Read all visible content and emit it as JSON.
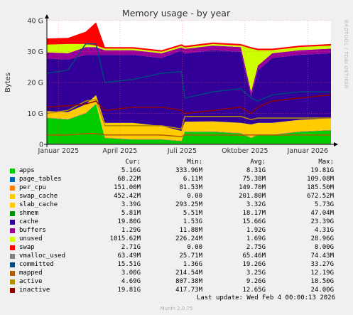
{
  "chart_data": {
    "type": "area",
    "title": "Memory usage - by year",
    "ylabel": "Bytes",
    "side_label": "RRDTOOL / TOBI OETIKER",
    "ylim": [
      0,
      40
    ],
    "yticks": [
      {
        "v": 0,
        "label": "0"
      },
      {
        "v": 10,
        "label": "10 G"
      },
      {
        "v": 20,
        "label": "20 G"
      },
      {
        "v": 30,
        "label": "30 G"
      },
      {
        "v": 40,
        "label": "40 G"
      }
    ],
    "xlim": [
      "2024-12-15",
      "2026-02-04"
    ],
    "xticks": [
      {
        "date": "2025-01-01",
        "label": "Januar 2025"
      },
      {
        "date": "2025-04-01",
        "label": "April 2025"
      },
      {
        "date": "2025-07-01",
        "label": "Juli 2025"
      },
      {
        "date": "2025-10-01",
        "label": "Oktober 2025"
      },
      {
        "date": "2026-01-01",
        "label": "Januar 2026"
      }
    ],
    "x": [
      "2024-12-15",
      "2025-01-15",
      "2025-02-10",
      "2025-02-25",
      "2025-03-10",
      "2025-04-20",
      "2025-06-01",
      "2025-06-30",
      "2025-07-05",
      "2025-08-15",
      "2025-09-25",
      "2025-10-10",
      "2025-10-20",
      "2025-11-10",
      "2025-12-20",
      "2026-02-04"
    ],
    "series": [
      {
        "name": "apps",
        "values": [
          8.5,
          8.0,
          10.0,
          13.0,
          2.0,
          1.5,
          1.5,
          1.0,
          4.0,
          4.0,
          3.5,
          2.0,
          3.0,
          3.0,
          4.0,
          4.5
        ]
      },
      {
        "name": "page_tables",
        "values": [
          0.07,
          0.07,
          0.07,
          0.07,
          0.07,
          0.07,
          0.07,
          0.07,
          0.07,
          0.07,
          0.07,
          0.07,
          0.07,
          0.07,
          0.07,
          0.07
        ]
      },
      {
        "name": "per_cpu",
        "values": [
          0.15,
          0.15,
          0.15,
          0.15,
          0.15,
          0.15,
          0.15,
          0.15,
          0.15,
          0.15,
          0.15,
          0.15,
          0.15,
          0.15,
          0.15,
          0.15
        ]
      },
      {
        "name": "swap_cache",
        "values": [
          0.2,
          0.2,
          0.2,
          0.2,
          0.2,
          0.2,
          0.2,
          0.1,
          0.1,
          0.2,
          0.2,
          0.2,
          0.2,
          0.2,
          0.2,
          0.2
        ]
      },
      {
        "name": "slab_cache",
        "values": [
          1.8,
          2.0,
          2.5,
          2.5,
          4.5,
          5.0,
          4.0,
          3.0,
          3.0,
          3.0,
          3.0,
          4.0,
          3.5,
          3.5,
          3.5,
          3.5
        ]
      },
      {
        "name": "shmem",
        "values": [
          0.02,
          0.02,
          0.02,
          0.02,
          0.02,
          0.02,
          0.02,
          0.02,
          0.02,
          0.02,
          0.02,
          0.02,
          0.02,
          0.02,
          0.02,
          0.02
        ]
      },
      {
        "name": "cache",
        "values": [
          17.0,
          17.0,
          16.0,
          13.0,
          22.0,
          22.0,
          22.0,
          26.0,
          22.0,
          23.0,
          23.0,
          9.0,
          17.0,
          21.0,
          21.0,
          21.0
        ]
      },
      {
        "name": "buffers",
        "values": [
          2.0,
          2.0,
          2.5,
          2.5,
          1.5,
          1.5,
          1.5,
          1.0,
          1.5,
          1.5,
          1.5,
          1.5,
          1.5,
          1.5,
          1.5,
          1.5
        ]
      },
      {
        "name": "unused",
        "values": [
          2.5,
          3.0,
          1.0,
          0.5,
          0.5,
          0.5,
          0.5,
          0.5,
          0.5,
          0.5,
          0.5,
          14.0,
          5.0,
          1.0,
          1.0,
          1.0
        ]
      },
      {
        "name": "swap",
        "values": [
          2.0,
          2.0,
          4.0,
          7.5,
          0.5,
          0.5,
          0.5,
          0.5,
          0.5,
          0.5,
          0.5,
          0.5,
          0.5,
          0.5,
          0.5,
          0.5
        ]
      },
      {
        "name": "vmalloc_used",
        "values": [
          0.06,
          0.06,
          0.06,
          0.06,
          0.06,
          0.06,
          0.06,
          0.06,
          0.06,
          0.06,
          0.06,
          0.06,
          0.06,
          0.06,
          0.06,
          0.06
        ]
      },
      {
        "name": "committed",
        "values": [
          23.0,
          24.0,
          32.5,
          32.5,
          20.0,
          21.0,
          23.0,
          23.5,
          15.0,
          17.0,
          18.0,
          15.0,
          14.0,
          16.0,
          17.0,
          17.0
        ]
      },
      {
        "name": "mapped",
        "values": [
          3.0,
          3.0,
          3.5,
          3.5,
          3.0,
          3.0,
          3.0,
          2.5,
          3.0,
          3.0,
          3.0,
          3.0,
          3.0,
          3.0,
          3.0,
          3.0
        ]
      },
      {
        "name": "active",
        "values": [
          10.0,
          11.0,
          14.0,
          14.5,
          6.0,
          6.0,
          6.0,
          5.0,
          9.0,
          9.0,
          9.0,
          8.0,
          8.5,
          8.5,
          8.5,
          8.5
        ]
      },
      {
        "name": "inactive",
        "values": [
          12.0,
          12.5,
          13.0,
          14.0,
          11.0,
          12.0,
          12.0,
          11.0,
          10.0,
          11.0,
          12.0,
          10.0,
          12.0,
          14.0,
          15.0,
          16.0
        ]
      }
    ],
    "colors": {
      "apps": "#00cc00",
      "page_tables": "#0066b3",
      "per_cpu": "#ff8000",
      "swap_cache": "#ffcc00",
      "slab_cache": "#ffcc00",
      "shmem": "#008f00",
      "cache": "#330099",
      "buffers": "#990099",
      "unused": "#ccff00",
      "swap": "#ff0000",
      "vmalloc_used": "#808080",
      "committed": "#00487d",
      "mapped": "#b35a00",
      "active": "#b38f00",
      "inactive": "#8f0000"
    },
    "stack_order": [
      "apps",
      "page_tables",
      "per_cpu",
      "swap_cache",
      "slab_cache",
      "shmem",
      "cache",
      "buffers",
      "unused",
      "swap"
    ],
    "line_order": [
      "vmalloc_used",
      "committed",
      "mapped",
      "active",
      "inactive"
    ]
  },
  "legend": {
    "headers": {
      "cur": "Cur:",
      "min": "Min:",
      "avg": "Avg:",
      "max": "Max:"
    },
    "rows": [
      {
        "name": "apps",
        "color": "#00cc00",
        "cur": "5.16G",
        "min": "333.96M",
        "avg": "8.31G",
        "max": "19.81G"
      },
      {
        "name": "page_tables",
        "color": "#0066b3",
        "cur": "68.22M",
        "min": "6.11M",
        "avg": "75.38M",
        "max": "109.08M"
      },
      {
        "name": "per_cpu",
        "color": "#ff8000",
        "cur": "151.00M",
        "min": "81.53M",
        "avg": "149.70M",
        "max": "185.50M"
      },
      {
        "name": "swap_cache",
        "color": "#ffcc00",
        "cur": "452.42M",
        "min": "0.00",
        "avg": "201.80M",
        "max": "672.52M"
      },
      {
        "name": "slab_cache",
        "color": "#ffcc00",
        "cur": "3.39G",
        "min": "293.25M",
        "avg": "3.32G",
        "max": "5.73G"
      },
      {
        "name": "shmem",
        "color": "#008f00",
        "cur": "5.81M",
        "min": "5.51M",
        "avg": "18.17M",
        "max": "47.04M"
      },
      {
        "name": "cache",
        "color": "#330099",
        "cur": "19.80G",
        "min": "1.53G",
        "avg": "15.66G",
        "max": "23.39G"
      },
      {
        "name": "buffers",
        "color": "#990099",
        "cur": "1.29G",
        "min": "11.88M",
        "avg": "1.92G",
        "max": "4.31G"
      },
      {
        "name": "unused",
        "color": "#ccff00",
        "cur": "1015.62M",
        "min": "226.24M",
        "avg": "1.69G",
        "max": "28.96G"
      },
      {
        "name": "swap",
        "color": "#ff0000",
        "cur": "2.71G",
        "min": "0.00",
        "avg": "2.75G",
        "max": "8.00G"
      },
      {
        "name": "vmalloc_used",
        "color": "#808080",
        "cur": "63.49M",
        "min": "25.71M",
        "avg": "65.46M",
        "max": "74.43M"
      },
      {
        "name": "committed",
        "color": "#00487d",
        "cur": "15.51G",
        "min": "1.36G",
        "avg": "19.26G",
        "max": "33.27G"
      },
      {
        "name": "mapped",
        "color": "#b35a00",
        "cur": "3.00G",
        "min": "214.54M",
        "avg": "3.25G",
        "max": "12.19G"
      },
      {
        "name": "active",
        "color": "#b38f00",
        "cur": "4.69G",
        "min": "807.38M",
        "avg": "9.26G",
        "max": "18.50G"
      },
      {
        "name": "inactive",
        "color": "#8f0000",
        "cur": "19.81G",
        "min": "417.73M",
        "avg": "12.65G",
        "max": "24.00G"
      }
    ]
  },
  "footer": {
    "last_update": "Last update: Wed Feb  4 00:00:13 2026",
    "munin": "Munin 2.0.75"
  }
}
